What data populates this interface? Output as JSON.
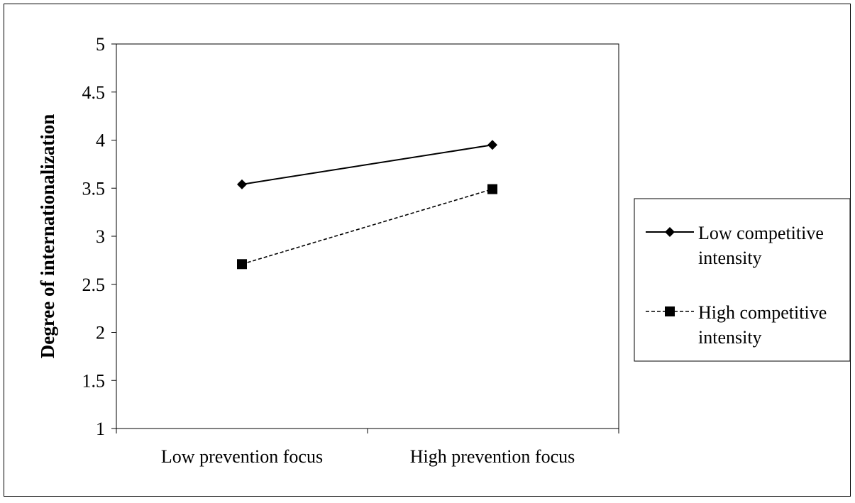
{
  "chart_data": {
    "type": "line",
    "categories": [
      "Low prevention focus",
      "High prevention focus"
    ],
    "ylabel": "Degree of internationalization",
    "xlabel": "",
    "ylim": [
      1,
      5
    ],
    "yticks": [
      "1",
      "1.5",
      "2",
      "2.5",
      "3",
      "3.5",
      "4",
      "4.5",
      "5"
    ],
    "grid": false,
    "legend_position": "right",
    "series": [
      {
        "name": "Low competitive intensity",
        "name_lines": [
          "Low competitive",
          "intensity"
        ],
        "values": [
          3.54,
          3.95
        ],
        "marker": "diamond",
        "line_style": "solid",
        "color": "#000000"
      },
      {
        "name": "High competitive intensity",
        "name_lines": [
          "High competitive",
          "intensity"
        ],
        "values": [
          2.71,
          3.49
        ],
        "marker": "square",
        "line_style": "dashed",
        "color": "#000000"
      }
    ]
  }
}
